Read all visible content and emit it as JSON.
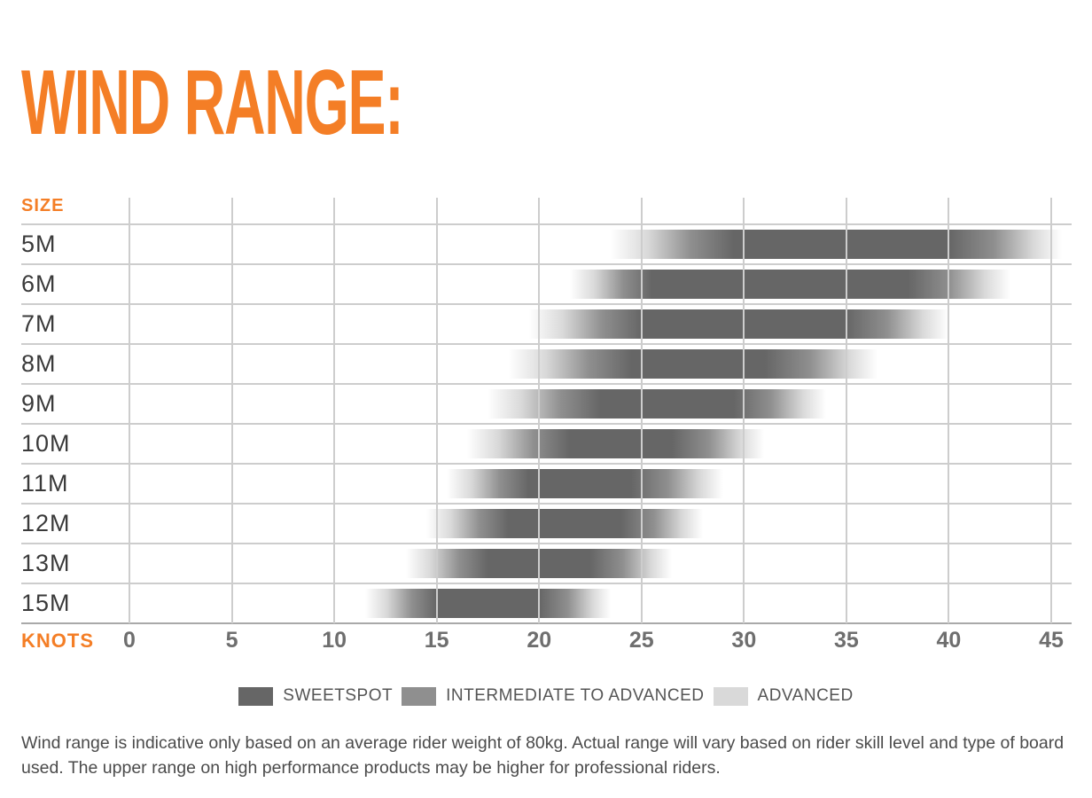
{
  "title": "WIND RANGE:",
  "chart_data": {
    "type": "bar",
    "orientation": "horizontal",
    "size_axis_label": "SIZE",
    "x_axis_label": "KNOTS",
    "x_unit": "knots",
    "x_ticks": [
      0,
      5,
      10,
      15,
      20,
      25,
      30,
      35,
      40,
      45
    ],
    "x_range": [
      0,
      46
    ],
    "grid": true,
    "rows": [
      {
        "label": "5M",
        "range_start": 23.5,
        "sweetspot_start": 29.5,
        "sweetspot_end": 40,
        "range_end": 45.5
      },
      {
        "label": "6M",
        "range_start": 21.5,
        "sweetspot_start": 25.5,
        "sweetspot_end": 38,
        "range_end": 43
      },
      {
        "label": "7M",
        "range_start": 19.5,
        "sweetspot_start": 25,
        "sweetspot_end": 35,
        "range_end": 40
      },
      {
        "label": "8M",
        "range_start": 18.5,
        "sweetspot_start": 24.5,
        "sweetspot_end": 31,
        "range_end": 36.5
      },
      {
        "label": "9M",
        "range_start": 17.5,
        "sweetspot_start": 23,
        "sweetspot_end": 29.5,
        "range_end": 34
      },
      {
        "label": "10M",
        "range_start": 16.5,
        "sweetspot_start": 21.5,
        "sweetspot_end": 26.5,
        "range_end": 31
      },
      {
        "label": "11M",
        "range_start": 15.5,
        "sweetspot_start": 19.5,
        "sweetspot_end": 24.5,
        "range_end": 29
      },
      {
        "label": "12M",
        "range_start": 14.5,
        "sweetspot_start": 18.5,
        "sweetspot_end": 24,
        "range_end": 28
      },
      {
        "label": "13M",
        "range_start": 13.5,
        "sweetspot_start": 17.5,
        "sweetspot_end": 22.5,
        "range_end": 26.5
      },
      {
        "label": "15M",
        "range_start": 11.5,
        "sweetspot_start": 15,
        "sweetspot_end": 20,
        "range_end": 23.5
      }
    ],
    "legend": [
      {
        "label": "SWEETSPOT",
        "color": "#666666"
      },
      {
        "label": "INTERMEDIATE TO ADVANCED",
        "color": "#8f8f8f"
      },
      {
        "label": "ADVANCED",
        "color": "#d9d9d9"
      }
    ],
    "legend_position": "bottom-center"
  },
  "footer": "Wind range is indicative only based on an average rider weight of 80kg. Actual range will vary based on rider skill level and type of board used. The upper range on high performance products may be higher for professional riders.",
  "colors": {
    "accent": "#f47e26",
    "sweetspot": "#666666",
    "intermediate": "#8f8f8f",
    "advanced": "#d9d9d9",
    "grid": "#cdcdcd",
    "axis_line": "#a9a9a9",
    "size_text": "#3a3a3a",
    "tick_text": "#6e6e6e",
    "legend_text": "#555555",
    "footer_text": "#4b4b4b"
  }
}
